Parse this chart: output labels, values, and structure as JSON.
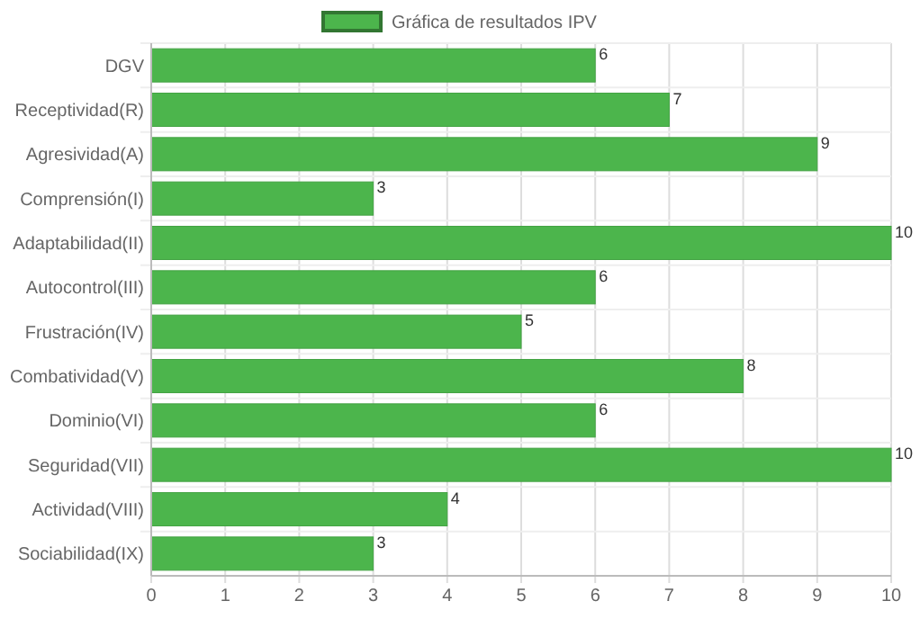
{
  "chart_data": {
    "type": "bar",
    "orientation": "horizontal",
    "categories": [
      "DGV",
      "Receptividad(R)",
      "Agresividad(A)",
      "Comprensión(I)",
      "Adaptabilidad(II)",
      "Autocontrol(III)",
      "Frustración(IV)",
      "Combatividad(V)",
      "Dominio(VI)",
      "Seguridad(VII)",
      "Actividad(VIII)",
      "Sociabilidad(IX)"
    ],
    "series": [
      {
        "name": "Gráfica de resultados IPV",
        "color": "#4cb54c",
        "values": [
          6,
          7,
          9,
          3,
          10,
          6,
          5,
          8,
          6,
          10,
          4,
          3
        ]
      }
    ],
    "xlim": [
      0,
      10
    ],
    "xticks": [
      0,
      1,
      2,
      3,
      4,
      5,
      6,
      7,
      8,
      9,
      10
    ],
    "grid": true,
    "legend": "top",
    "data_labels": true
  }
}
